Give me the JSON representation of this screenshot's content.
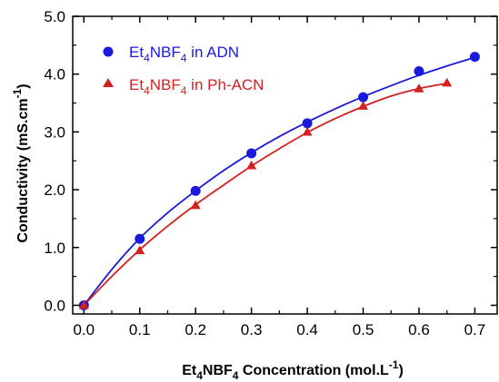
{
  "chart_data": {
    "type": "scatter",
    "xlabel": {
      "pre": "Et",
      "sub1": "4",
      "mid": "NBF",
      "sub2": "4",
      "post": " Concentration (mol.L",
      "sup": "-1",
      "close": ")"
    },
    "ylabel": {
      "pre": "Conductivity (mS.cm",
      "sup": "-1",
      "close": ")"
    },
    "xlim": [
      -0.02,
      0.74
    ],
    "ylim": [
      -0.15,
      5.0
    ],
    "xticks": [
      "0.0",
      "0.1",
      "0.2",
      "0.3",
      "0.4",
      "0.5",
      "0.6",
      "0.7"
    ],
    "yticks": [
      "0.0",
      "1.0",
      "2.0",
      "3.0",
      "4.0",
      "5.0"
    ],
    "grid": false,
    "legend_position": "top-left",
    "series": [
      {
        "name": {
          "pre": "Et",
          "sub1": "4",
          "mid": "NBF",
          "sub2": "4",
          "post": " in ADN"
        },
        "marker": "circle",
        "color": "#1a1adc",
        "x": [
          0.0,
          0.1,
          0.2,
          0.3,
          0.4,
          0.5,
          0.6,
          0.7
        ],
        "y": [
          0.0,
          1.15,
          1.98,
          2.63,
          3.15,
          3.6,
          4.05,
          4.3
        ],
        "fit": [
          [
            0.0,
            0.0
          ],
          [
            0.05,
            0.62
          ],
          [
            0.1,
            1.16
          ],
          [
            0.15,
            1.6
          ],
          [
            0.2,
            1.98
          ],
          [
            0.25,
            2.33
          ],
          [
            0.3,
            2.64
          ],
          [
            0.35,
            2.92
          ],
          [
            0.4,
            3.17
          ],
          [
            0.45,
            3.4
          ],
          [
            0.5,
            3.61
          ],
          [
            0.55,
            3.8
          ],
          [
            0.6,
            3.98
          ],
          [
            0.65,
            4.14
          ],
          [
            0.7,
            4.29
          ]
        ]
      },
      {
        "name": {
          "pre": "Et",
          "sub1": "4",
          "mid": "NBF",
          "sub2": "4",
          "post": " in Ph-ACN"
        },
        "marker": "triangle",
        "color": "#d42020",
        "x": [
          0.0,
          0.1,
          0.2,
          0.3,
          0.4,
          0.5,
          0.6,
          0.65
        ],
        "y": [
          0.0,
          0.95,
          1.73,
          2.42,
          3.0,
          3.45,
          3.75,
          3.85
        ],
        "fit": [
          [
            0.0,
            0.0
          ],
          [
            0.05,
            0.5
          ],
          [
            0.1,
            0.96
          ],
          [
            0.15,
            1.37
          ],
          [
            0.2,
            1.74
          ],
          [
            0.25,
            2.08
          ],
          [
            0.3,
            2.41
          ],
          [
            0.35,
            2.71
          ],
          [
            0.4,
            2.99
          ],
          [
            0.45,
            3.23
          ],
          [
            0.5,
            3.44
          ],
          [
            0.55,
            3.62
          ],
          [
            0.6,
            3.75
          ],
          [
            0.65,
            3.84
          ]
        ]
      }
    ]
  }
}
